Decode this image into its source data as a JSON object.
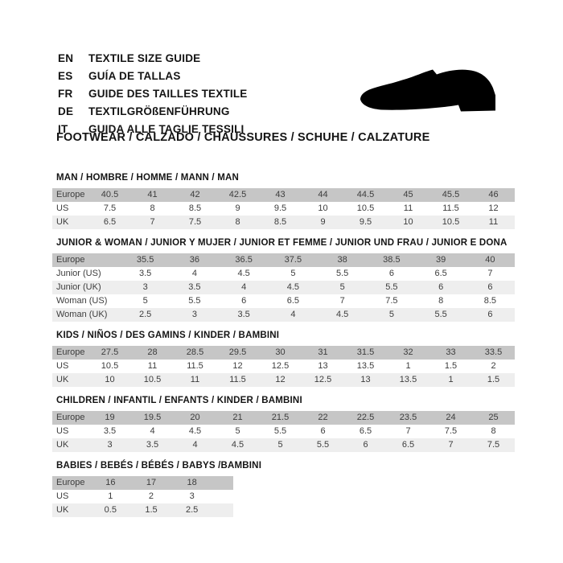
{
  "header": {
    "languages": [
      {
        "code": "EN",
        "label": "TEXTILE SIZE GUIDE"
      },
      {
        "code": "ES",
        "label": "GUÍA DE TALLAS"
      },
      {
        "code": "FR",
        "label": "GUIDE DES TAILLES TEXTILE"
      },
      {
        "code": "DE",
        "label": "TEXTILGRÖßENFÜHRUNG"
      },
      {
        "code": "IT",
        "label": "GUIDA ALLE TAGLIE TESSILI"
      }
    ],
    "category_title": "FOOTWEAR / CALZADO / CHAUSSURES / SCHUHE / CALZATURE",
    "shoe_icon": "dress-shoe-silhouette-icon"
  },
  "colors": {
    "header_row_bg": "#c6c6c6",
    "alt_row_bg": "#eeeeee",
    "table_text": "#3d3d3d",
    "title_text": "#141414",
    "shoe_fill": "#000000"
  },
  "tables": [
    {
      "title": "MAN / HOMBRE / HOMME / MANN / MAN",
      "rows": [
        {
          "label": "Europe",
          "values": [
            "40.5",
            "41",
            "42",
            "42.5",
            "43",
            "44",
            "44.5",
            "45",
            "45.5",
            "46"
          ]
        },
        {
          "label": "US",
          "values": [
            "7.5",
            "8",
            "8.5",
            "9",
            "9.5",
            "10",
            "10.5",
            "11",
            "11.5",
            "12"
          ]
        },
        {
          "label": "UK",
          "values": [
            "6.5",
            "7",
            "7.5",
            "8",
            "8.5",
            "9",
            "9.5",
            "10",
            "10.5",
            "11"
          ]
        }
      ]
    },
    {
      "title": "JUNIOR & WOMAN / JUNIOR Y MUJER / JUNIOR ET FEMME / JUNIOR UND FRAU / JUNIOR E DONA",
      "rows": [
        {
          "label": "Europe",
          "values": [
            "35.5",
            "36",
            "36.5",
            "37.5",
            "38",
            "38.5",
            "39",
            "40"
          ]
        },
        {
          "label": "Junior (US)",
          "values": [
            "3.5",
            "4",
            "4.5",
            "5",
            "5.5",
            "6",
            "6.5",
            "7"
          ]
        },
        {
          "label": "Junior (UK)",
          "values": [
            "3",
            "3.5",
            "4",
            "4.5",
            "5",
            "5.5",
            "6",
            "6"
          ]
        },
        {
          "label": "Woman (US)",
          "values": [
            "5",
            "5.5",
            "6",
            "6.5",
            "7",
            "7.5",
            "8",
            "8.5"
          ]
        },
        {
          "label": "Woman (UK)",
          "values": [
            "2.5",
            "3",
            "3.5",
            "4",
            "4.5",
            "5",
            "5.5",
            "6"
          ]
        }
      ]
    },
    {
      "title": "KIDS / NIÑOS / DES GAMINS / KINDER / BAMBINI",
      "rows": [
        {
          "label": "Europe",
          "values": [
            "27.5",
            "28",
            "28.5",
            "29.5",
            "30",
            "31",
            "31.5",
            "32",
            "33",
            "33.5"
          ]
        },
        {
          "label": "US",
          "values": [
            "10.5",
            "11",
            "11.5",
            "12",
            "12.5",
            "13",
            "13.5",
            "1",
            "1.5",
            "2"
          ]
        },
        {
          "label": "UK",
          "values": [
            "10",
            "10.5",
            "11",
            "11.5",
            "12",
            "12.5",
            "13",
            "13.5",
            "1",
            "1.5"
          ]
        }
      ]
    },
    {
      "title": "CHILDREN / INFANTIL / ENFANTS / KINDER / BAMBINI",
      "rows": [
        {
          "label": "Europe",
          "values": [
            "19",
            "19.5",
            "20",
            "21",
            "21.5",
            "22",
            "22.5",
            "23.5",
            "24",
            "25"
          ]
        },
        {
          "label": "US",
          "values": [
            "3.5",
            "4",
            "4.5",
            "5",
            "5.5",
            "6",
            "6.5",
            "7",
            "7.5",
            "8"
          ]
        },
        {
          "label": "UK",
          "values": [
            "3",
            "3.5",
            "4",
            "4.5",
            "5",
            "5.5",
            "6",
            "6.5",
            "7",
            "7.5"
          ]
        }
      ]
    },
    {
      "title": "BABIES / BEBÉS / BÉBÉS / BABYS /BAMBINI",
      "rows": [
        {
          "label": "Europe",
          "values": [
            "16",
            "17",
            "18"
          ]
        },
        {
          "label": "US",
          "values": [
            "1",
            "2",
            "3"
          ]
        },
        {
          "label": "UK",
          "values": [
            "0.5",
            "1.5",
            "2.5"
          ]
        }
      ]
    }
  ]
}
